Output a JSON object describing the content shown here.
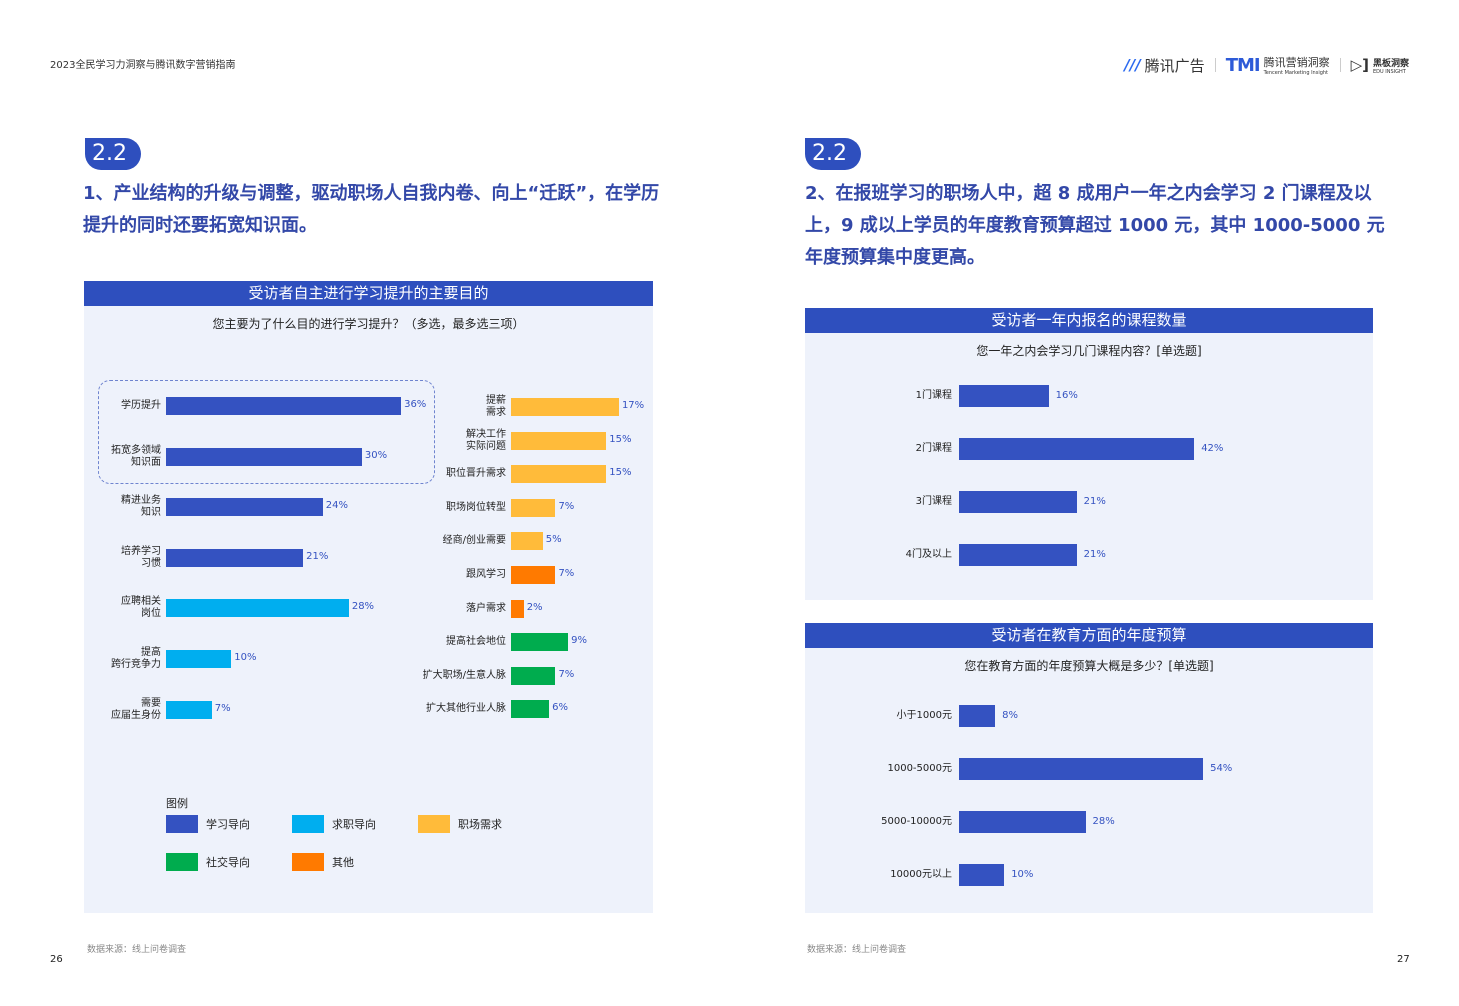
{
  "doc_title": "2023全民学习力洞察与腾讯数字营销指南",
  "logos": {
    "tencent_ads": "腾讯广告",
    "tmi": "TMI",
    "tmi_cn": "腾讯营销洞察",
    "tmi_en": "Tencent Marketing Insight",
    "edu_cn": "黑板洞察",
    "edu_en": "EDU INSIGHT"
  },
  "left": {
    "badge": "2.2",
    "heading": "1、产业结构的升级与调整，驱动职场人自我内卷、向上“迁跃”，在学历提升的同时还要拓宽知识面。",
    "source": "数据来源：线上问卷调查",
    "page": "26"
  },
  "right": {
    "badge": "2.2",
    "heading": "2、在报班学习的职场人中，超 8 成用户一年之内会学习 2 门课程及以上，9 成以上学员的年度教育预算超过 1000 元，其中 1000-5000 元年度预算集中度更高。",
    "source": "数据来源：线上问卷调查",
    "page": "27"
  },
  "colors": {
    "学习导向": "#3452c1",
    "求职导向": "#00aeef",
    "职场需求": "#ffbb3a",
    "社交导向": "#00ac4e",
    "其他": "#ff7a00",
    "header": "#2e4fbe"
  },
  "chart_data": [
    {
      "type": "bar",
      "orientation": "horizontal",
      "title": "受访者自主进行学习提升的主要目的",
      "subtitle": "您主要为了什么目的进行学习提升？（多选，最多选三项）",
      "legend_title": "图例",
      "legend": [
        "学习导向",
        "求职导向",
        "职场需求",
        "社交导向",
        "其他"
      ],
      "left_group": [
        {
          "label": "学历提升",
          "value": 36,
          "group": "学习导向",
          "text": "36%"
        },
        {
          "label": "拓宽多领域\n知识面",
          "value": 30,
          "group": "学习导向",
          "text": "30%"
        },
        {
          "label": "精进业务\n知识",
          "value": 24,
          "group": "学习导向",
          "text": "24%"
        },
        {
          "label": "培养学习\n习惯",
          "value": 21,
          "group": "学习导向",
          "text": "21%"
        },
        {
          "label": "应聘相关\n岗位",
          "value": 28,
          "group": "求职导向",
          "text": "28%"
        },
        {
          "label": "提高\n跨行竞争力",
          "value": 10,
          "group": "求职导向",
          "text": "10%"
        },
        {
          "label": "需要\n应届生身份",
          "value": 7,
          "group": "求职导向",
          "text": "7%"
        }
      ],
      "right_group": [
        {
          "label": "提薪\n需求",
          "value": 17,
          "group": "职场需求",
          "text": "17%"
        },
        {
          "label": "解决工作\n实际问题",
          "value": 15,
          "group": "职场需求",
          "text": "15%"
        },
        {
          "label": "职位晋升需求",
          "value": 15,
          "group": "职场需求",
          "text": "15%"
        },
        {
          "label": "职场岗位转型",
          "value": 7,
          "group": "职场需求",
          "text": "7%"
        },
        {
          "label": "经商/创业需要",
          "value": 5,
          "group": "职场需求",
          "text": "5%"
        },
        {
          "label": "跟风学习",
          "value": 7,
          "group": "其他",
          "text": "7%"
        },
        {
          "label": "落户需求",
          "value": 2,
          "group": "其他",
          "text": "2%"
        },
        {
          "label": "提高社会地位",
          "value": 9,
          "group": "社交导向",
          "text": "9%"
        },
        {
          "label": "扩大职场/生意人脉",
          "value": 7,
          "group": "社交导向",
          "text": "7%"
        },
        {
          "label": "扩大其他行业人脉",
          "value": 6,
          "group": "社交导向",
          "text": "6%"
        }
      ]
    },
    {
      "type": "bar",
      "orientation": "horizontal",
      "title": "受访者一年内报名的课程数量",
      "subtitle": "您一年之内会学习几门课程内容？[单选题]",
      "categories": [
        "1门课程",
        "2门课程",
        "3门课程",
        "4门及以上"
      ],
      "values": [
        16,
        42,
        21,
        21
      ],
      "labels": [
        "16%",
        "42%",
        "21%",
        "21%"
      ]
    },
    {
      "type": "bar",
      "orientation": "horizontal",
      "title": "受访者在教育方面的年度预算",
      "subtitle": "您在教育方面的年度预算大概是多少？[单选题]",
      "categories": [
        "小于1000元",
        "1000-5000元",
        "5000-10000元",
        "10000元以上"
      ],
      "values": [
        8,
        54,
        28,
        10
      ],
      "labels": [
        "8%",
        "54%",
        "28%",
        "10%"
      ]
    }
  ]
}
